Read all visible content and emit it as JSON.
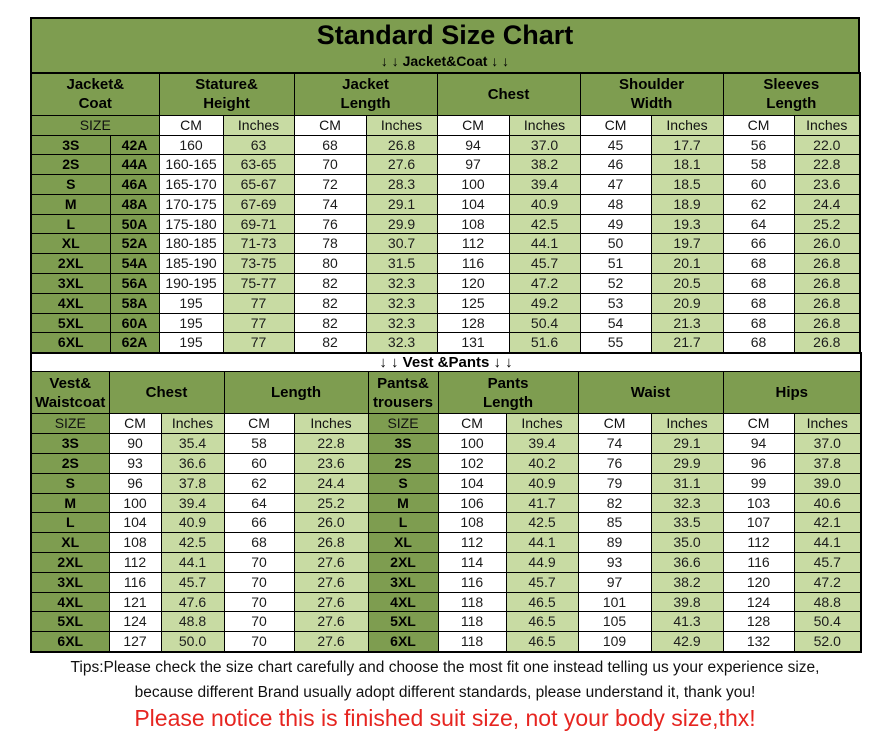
{
  "title": "Standard Size Chart",
  "jacket_section_label": "↓ ↓  Jacket&Coat ↓ ↓",
  "vest_section_label": "↓ ↓  Vest &Pants ↓ ↓",
  "labels": {
    "size": "SIZE",
    "cm": "CM",
    "inches": "Inches"
  },
  "jacket_table": {
    "group_headers": [
      "Jacket&\nCoat",
      "Stature&\nHeight",
      "Jacket\nLength",
      "Chest",
      "Shoulder\nWidth",
      "Sleeves\nLength"
    ],
    "rows": [
      {
        "size": "3S",
        "code": "42A",
        "values": [
          "160",
          "63",
          "68",
          "26.8",
          "94",
          "37.0",
          "45",
          "17.7",
          "56",
          "22.0"
        ]
      },
      {
        "size": "2S",
        "code": "44A",
        "values": [
          "160-165",
          "63-65",
          "70",
          "27.6",
          "97",
          "38.2",
          "46",
          "18.1",
          "58",
          "22.8"
        ]
      },
      {
        "size": "S",
        "code": "46A",
        "values": [
          "165-170",
          "65-67",
          "72",
          "28.3",
          "100",
          "39.4",
          "47",
          "18.5",
          "60",
          "23.6"
        ]
      },
      {
        "size": "M",
        "code": "48A",
        "values": [
          "170-175",
          "67-69",
          "74",
          "29.1",
          "104",
          "40.9",
          "48",
          "18.9",
          "62",
          "24.4"
        ]
      },
      {
        "size": "L",
        "code": "50A",
        "values": [
          "175-180",
          "69-71",
          "76",
          "29.9",
          "108",
          "42.5",
          "49",
          "19.3",
          "64",
          "25.2"
        ]
      },
      {
        "size": "XL",
        "code": "52A",
        "values": [
          "180-185",
          "71-73",
          "78",
          "30.7",
          "112",
          "44.1",
          "50",
          "19.7",
          "66",
          "26.0"
        ]
      },
      {
        "size": "2XL",
        "code": "54A",
        "values": [
          "185-190",
          "73-75",
          "80",
          "31.5",
          "116",
          "45.7",
          "51",
          "20.1",
          "68",
          "26.8"
        ]
      },
      {
        "size": "3XL",
        "code": "56A",
        "values": [
          "190-195",
          "75-77",
          "82",
          "32.3",
          "120",
          "47.2",
          "52",
          "20.5",
          "68",
          "26.8"
        ]
      },
      {
        "size": "4XL",
        "code": "58A",
        "values": [
          "195",
          "77",
          "82",
          "32.3",
          "125",
          "49.2",
          "53",
          "20.9",
          "68",
          "26.8"
        ]
      },
      {
        "size": "5XL",
        "code": "60A",
        "values": [
          "195",
          "77",
          "82",
          "32.3",
          "128",
          "50.4",
          "54",
          "21.3",
          "68",
          "26.8"
        ]
      },
      {
        "size": "6XL",
        "code": "62A",
        "values": [
          "195",
          "77",
          "82",
          "32.3",
          "131",
          "51.6",
          "55",
          "21.7",
          "68",
          "26.8"
        ]
      }
    ]
  },
  "vest_table": {
    "group_headers": [
      "Vest&\nWaistcoat",
      "Chest",
      "Length",
      "Pants&\ntrousers",
      "Pants\nLength",
      "Waist",
      "Hips"
    ],
    "rows": [
      {
        "size": "3S",
        "vest_values": [
          "90",
          "35.4",
          "58",
          "22.8"
        ],
        "pants_size": "3S",
        "pants_values": [
          "100",
          "39.4",
          "74",
          "29.1",
          "94",
          "37.0"
        ]
      },
      {
        "size": "2S",
        "vest_values": [
          "93",
          "36.6",
          "60",
          "23.6"
        ],
        "pants_size": "2S",
        "pants_values": [
          "102",
          "40.2",
          "76",
          "29.9",
          "96",
          "37.8"
        ]
      },
      {
        "size": "S",
        "vest_values": [
          "96",
          "37.8",
          "62",
          "24.4"
        ],
        "pants_size": "S",
        "pants_values": [
          "104",
          "40.9",
          "79",
          "31.1",
          "99",
          "39.0"
        ]
      },
      {
        "size": "M",
        "vest_values": [
          "100",
          "39.4",
          "64",
          "25.2"
        ],
        "pants_size": "M",
        "pants_values": [
          "106",
          "41.7",
          "82",
          "32.3",
          "103",
          "40.6"
        ]
      },
      {
        "size": "L",
        "vest_values": [
          "104",
          "40.9",
          "66",
          "26.0"
        ],
        "pants_size": "L",
        "pants_values": [
          "108",
          "42.5",
          "85",
          "33.5",
          "107",
          "42.1"
        ]
      },
      {
        "size": "XL",
        "vest_values": [
          "108",
          "42.5",
          "68",
          "26.8"
        ],
        "pants_size": "XL",
        "pants_values": [
          "112",
          "44.1",
          "89",
          "35.0",
          "112",
          "44.1"
        ]
      },
      {
        "size": "2XL",
        "vest_values": [
          "112",
          "44.1",
          "70",
          "27.6"
        ],
        "pants_size": "2XL",
        "pants_values": [
          "114",
          "44.9",
          "93",
          "36.6",
          "116",
          "45.7"
        ]
      },
      {
        "size": "3XL",
        "vest_values": [
          "116",
          "45.7",
          "70",
          "27.6"
        ],
        "pants_size": "3XL",
        "pants_values": [
          "116",
          "45.7",
          "97",
          "38.2",
          "120",
          "47.2"
        ]
      },
      {
        "size": "4XL",
        "vest_values": [
          "121",
          "47.6",
          "70",
          "27.6"
        ],
        "pants_size": "4XL",
        "pants_values": [
          "118",
          "46.5",
          "101",
          "39.8",
          "124",
          "48.8"
        ]
      },
      {
        "size": "5XL",
        "vest_values": [
          "124",
          "48.8",
          "70",
          "27.6"
        ],
        "pants_size": "5XL",
        "pants_values": [
          "118",
          "46.5",
          "105",
          "41.3",
          "128",
          "50.4"
        ]
      },
      {
        "size": "6XL",
        "vest_values": [
          "127",
          "50.0",
          "70",
          "27.6"
        ],
        "pants_size": "6XL",
        "pants_values": [
          "118",
          "46.5",
          "109",
          "42.9",
          "132",
          "52.0"
        ]
      }
    ]
  },
  "tips": {
    "line1": "Tips:Please check the size chart carefully and choose the most fit one instead telling us your experience size,",
    "line2": "because different Brand usually adopt different standards, please understand it, thank you!",
    "notice": "Please notice this is finished suit size, not your body size,thx!"
  },
  "colors": {
    "header_green": "#7e9d50",
    "light_green": "#c8dba3",
    "cell_white": "#ffffff",
    "border_black": "#000000",
    "notice_red": "#e62520"
  }
}
